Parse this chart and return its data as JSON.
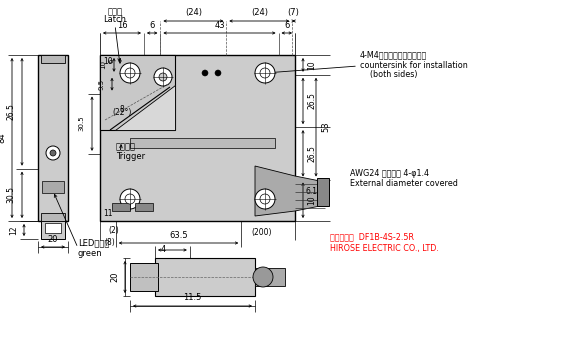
{
  "bg_color": "#ffffff",
  "lc": "#000000",
  "fc": "#cccccc",
  "fc2": "#b8b8b8",
  "annotations": {
    "latch_jp": "ラッチ",
    "latch_en": "Latch",
    "trigger_jp": "トリガー",
    "trigger_en": "Trigger",
    "led_jp": "LED（緑）",
    "led_en": "green",
    "m4_jp": "4-M4取付け用皿穴（両面）",
    "m4_en1": "countersink for installation",
    "m4_en2": "(both sides)",
    "awg_jp": "AWG24 被覆外径 4-φ1.4",
    "awg_en": "External diameter covered",
    "hirose_jp": "ヒロセ電機  DF1B-4S-2.5R",
    "hirose_en": "HIROSE ELECTRIC CO., LTD."
  }
}
